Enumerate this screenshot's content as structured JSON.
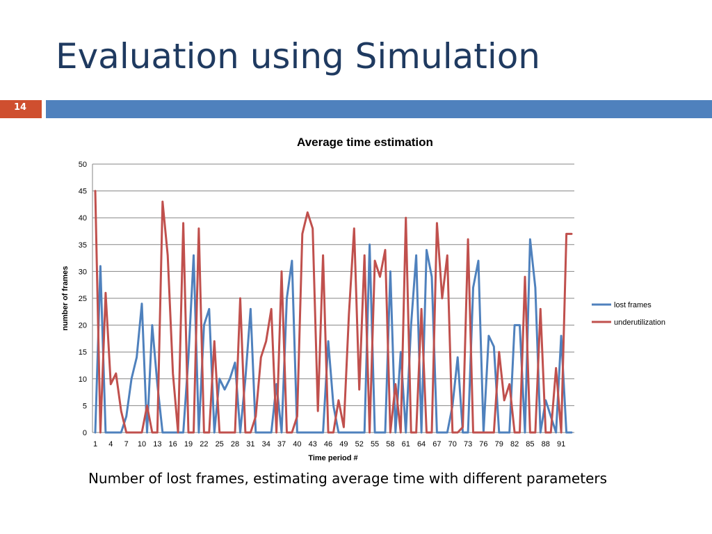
{
  "slide": {
    "title": "Evaluation using Simulation",
    "number": "14",
    "caption": "Number of lost frames, estimating average time with different parameters"
  },
  "colors": {
    "accent_bar": "#4f81bd",
    "number_box": "#cf4f2f",
    "title": "#1f3a60"
  },
  "chart_data": {
    "type": "line",
    "title": "Average time estimation",
    "xlabel": "Time period #",
    "ylabel": "number of frames",
    "ylim": [
      0,
      50
    ],
    "yticks": [
      0,
      5,
      10,
      15,
      20,
      25,
      30,
      35,
      40,
      45,
      50
    ],
    "xtick_labels": [
      "1",
      "4",
      "7",
      "10",
      "13",
      "16",
      "19",
      "22",
      "25",
      "28",
      "31",
      "34",
      "37",
      "40",
      "43",
      "46",
      "49",
      "52",
      "55",
      "58",
      "61",
      "64",
      "67",
      "70",
      "73",
      "76",
      "79",
      "82",
      "85",
      "88",
      "91"
    ],
    "x": [
      1,
      2,
      3,
      4,
      5,
      6,
      7,
      8,
      9,
      10,
      11,
      12,
      13,
      14,
      15,
      16,
      17,
      18,
      19,
      20,
      21,
      22,
      23,
      24,
      25,
      26,
      27,
      28,
      29,
      30,
      31,
      32,
      33,
      34,
      35,
      36,
      37,
      38,
      39,
      40,
      41,
      42,
      43,
      44,
      45,
      46,
      47,
      48,
      49,
      50,
      51,
      52,
      53,
      54,
      55,
      56,
      57,
      58,
      59,
      60,
      61,
      62,
      63,
      64,
      65,
      66,
      67,
      68,
      69,
      70,
      71,
      72,
      73,
      74,
      75,
      76,
      77,
      78,
      79,
      80,
      81,
      82,
      83,
      84,
      85,
      86,
      87,
      88,
      89,
      90,
      91,
      92,
      93
    ],
    "grid": true,
    "legend_position": "right",
    "series": [
      {
        "name": "lost frames",
        "color": "#4f81bd",
        "values": [
          0,
          31,
          0,
          0,
          0,
          0,
          3,
          10,
          14,
          24,
          0,
          20,
          9,
          0,
          0,
          0,
          0,
          0,
          14,
          33,
          0,
          20,
          23,
          0,
          10,
          8,
          10,
          13,
          0,
          10,
          23,
          0,
          0,
          0,
          0,
          9,
          0,
          25,
          32,
          0,
          0,
          0,
          0,
          0,
          0,
          17,
          5,
          0,
          0,
          0,
          0,
          0,
          0,
          35,
          0,
          0,
          0,
          30,
          0,
          15,
          0,
          20,
          33,
          0,
          34,
          29,
          0,
          0,
          0,
          5,
          14,
          0,
          0,
          27,
          32,
          0,
          18,
          16,
          0,
          0,
          0,
          20,
          20,
          0,
          36,
          27,
          0,
          6,
          3,
          0,
          18,
          0,
          0
        ]
      },
      {
        "name": "underutilization",
        "color": "#c0504d",
        "values": [
          45,
          0,
          26,
          9,
          11,
          4,
          0,
          0,
          0,
          0,
          5,
          0,
          0,
          43,
          33,
          11,
          0,
          39,
          0,
          0,
          38,
          0,
          0,
          17,
          0,
          0,
          0,
          0,
          25,
          0,
          0,
          3,
          14,
          17,
          23,
          0,
          30,
          0,
          0,
          3,
          37,
          41,
          38,
          4,
          33,
          0,
          0,
          6,
          1,
          22,
          38,
          8,
          33,
          0,
          32,
          29,
          34,
          0,
          9,
          0,
          40,
          0,
          0,
          23,
          0,
          0,
          39,
          25,
          33,
          0,
          0,
          1,
          36,
          0,
          0,
          0,
          0,
          0,
          15,
          6,
          9,
          0,
          0,
          29,
          0,
          0,
          23,
          0,
          0,
          12,
          0,
          37,
          37
        ]
      }
    ]
  }
}
